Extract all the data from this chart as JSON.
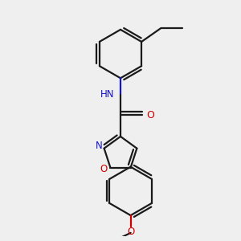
{
  "background_color": "#efefef",
  "bond_color": "#1a1a1a",
  "N_color": "#1414cd",
  "O_color": "#cc0000",
  "line_width": 1.6,
  "dpi": 100,
  "fig_size": [
    3.0,
    3.0
  ],
  "xlim": [
    -0.5,
    2.5
  ],
  "ylim": [
    -0.8,
    3.5
  ]
}
